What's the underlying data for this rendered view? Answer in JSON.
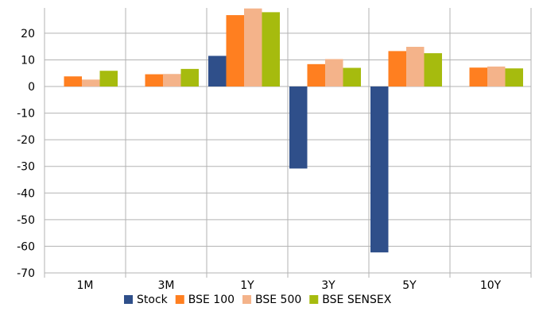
{
  "chart_data": {
    "type": "bar",
    "categories": [
      "1M",
      "3M",
      "1Y",
      "3Y",
      "5Y",
      "10Y"
    ],
    "series": [
      {
        "name": "Stock",
        "color": "#2f4f8a",
        "values": [
          null,
          null,
          11.5,
          -30.8,
          -62.3,
          null
        ]
      },
      {
        "name": "BSE 100",
        "color": "#ff7f20",
        "values": [
          3.8,
          4.6,
          26.8,
          8.4,
          13.3,
          7.1
        ]
      },
      {
        "name": "BSE 500",
        "color": "#f4b38a",
        "values": [
          2.6,
          4.7,
          29.3,
          10.3,
          14.9,
          7.5
        ]
      },
      {
        "name": "BSE SENSEX",
        "color": "#a6bb0e",
        "values": [
          5.9,
          6.6,
          27.9,
          7.0,
          12.5,
          6.8
        ]
      }
    ],
    "ylim": [
      -70,
      29.5
    ],
    "yticks": [
      20,
      10,
      0,
      -10,
      -20,
      -30,
      -40,
      -50,
      -60,
      -70
    ],
    "grid": true,
    "legend": "bottom",
    "title": "",
    "xlabel": "",
    "ylabel": ""
  }
}
